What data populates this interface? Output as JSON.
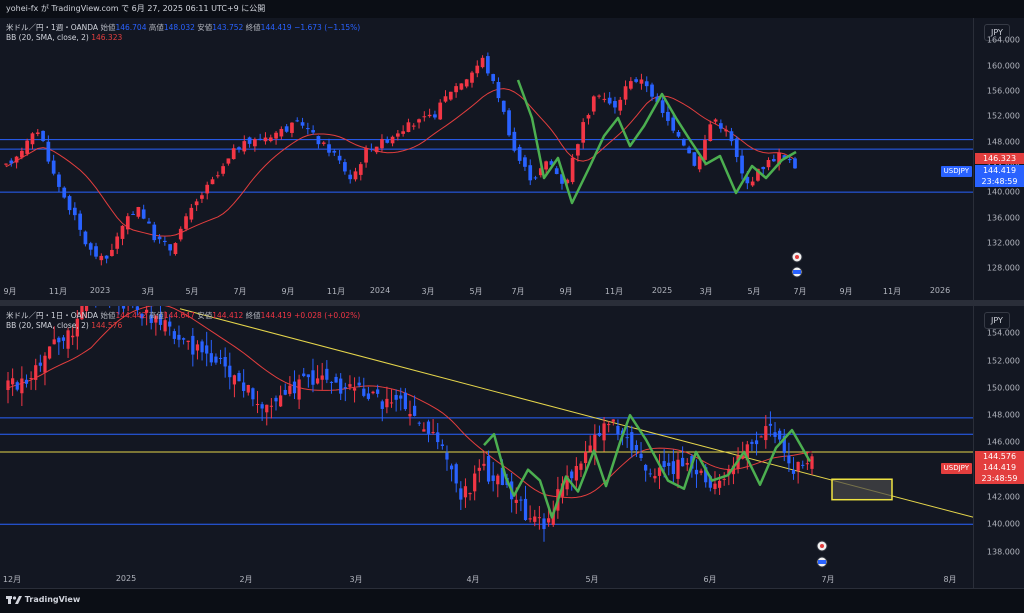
{
  "header": {
    "caption": "yohei-fx が TradingView.com で 6月 27, 2025 06:11 UTC+9 に公開"
  },
  "footer": {
    "brand": "TradingView"
  },
  "colors": {
    "up": "#f23645",
    "down": "#2962ff",
    "bb": "#e33e3e",
    "hline": "#2962ff",
    "trend": "#e5d54b",
    "wave": "#4caf50",
    "zone_fill": "#4a4a4a",
    "zone_border": "#f0e442"
  },
  "panel_weekly": {
    "currency": "JPY",
    "legend_title": "米ドル／円・1週・OANDA",
    "ohlc": [
      {
        "label": "始値",
        "value": "146.704"
      },
      {
        "label": "高値",
        "value": "148.032"
      },
      {
        "label": "安値",
        "value": "143.752"
      },
      {
        "label": "終値",
        "value": "144.419"
      }
    ],
    "change": "−1.673 (−1.15%)",
    "indicator": "BB (20, SMA, close, 2)",
    "indicator_value": "146.323",
    "price_ticks": [
      "164.000",
      "160.000",
      "156.000",
      "152.000",
      "148.000",
      "144.000",
      "140.000",
      "136.000",
      "132.000",
      "128.000"
    ],
    "bb_box": "146.323",
    "symbol": "USDJPY",
    "last_price": "144.419",
    "countdown": "23:48:59",
    "time_ticks": [
      "9月",
      "11月",
      "2023",
      "3月",
      "5月",
      "7月",
      "9月",
      "11月",
      "2024",
      "3月",
      "5月",
      "7月",
      "9月",
      "11月",
      "2025",
      "3月",
      "5月",
      "7月",
      "9月",
      "11月",
      "2026"
    ],
    "price_range": [
      125.5,
      167.5
    ],
    "horizontal_levels": [
      148.3,
      146.8,
      140.0
    ]
  },
  "panel_daily": {
    "currency": "JPY",
    "legend_title": "米ドル／円・1日・OANDA",
    "ohlc": [
      {
        "label": "始値",
        "value": "144.442"
      },
      {
        "label": "高値",
        "value": "144.647"
      },
      {
        "label": "安値",
        "value": "144.412"
      },
      {
        "label": "終値",
        "value": "144.419"
      }
    ],
    "change": "+0.028 (+0.02%)",
    "indicator": "BB (20, SMA, close, 2)",
    "indicator_value": "144.576",
    "price_ticks": [
      "154.000",
      "152.000",
      "150.000",
      "148.000",
      "146.000",
      "144.000",
      "142.000",
      "140.000",
      "138.000"
    ],
    "bb_box": "144.576",
    "symbol": "USDJPY",
    "last_price": "144.419",
    "countdown": "23:48:59",
    "time_ticks": [
      "12月",
      "2025",
      "2月",
      "3月",
      "4月",
      "5月",
      "6月",
      "7月",
      "8月"
    ],
    "price_range": [
      136.5,
      156.0
    ],
    "horizontal_levels": [
      147.8,
      146.6,
      145.3,
      140.0
    ]
  }
}
